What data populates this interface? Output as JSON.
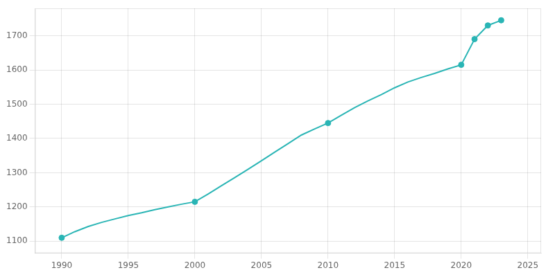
{
  "chart_data": {
    "type": "line",
    "x": [
      1990,
      1991,
      1992,
      1993,
      1994,
      1995,
      1996,
      1997,
      1998,
      1999,
      2000,
      2001,
      2002,
      2003,
      2004,
      2005,
      2006,
      2007,
      2008,
      2009,
      2010,
      2011,
      2012,
      2013,
      2014,
      2015,
      2016,
      2017,
      2018,
      2019,
      2020,
      2021,
      2022,
      2023
    ],
    "series": [
      {
        "color": "#2ab5b5",
        "line_style": "solid",
        "values": [
          1110,
          1128,
          1143,
          1155,
          1165,
          1175,
          1183,
          1192,
          1200,
          1208,
          1215,
          1238,
          1262,
          1286,
          1310,
          1335,
          1360,
          1385,
          1410,
          1428,
          1445,
          1468,
          1490,
          1510,
          1528,
          1548,
          1565,
          1578,
          1590,
          1603,
          1615,
          1690,
          1730,
          1745
        ]
      },
      {
        "type": "scatter",
        "marker": "circle",
        "color": "#2ab5b5",
        "values": [
          1110,
          null,
          null,
          null,
          null,
          null,
          null,
          null,
          null,
          null,
          1215,
          null,
          null,
          null,
          null,
          null,
          null,
          null,
          null,
          null,
          1445,
          null,
          null,
          null,
          null,
          null,
          null,
          null,
          null,
          null,
          1615,
          1690,
          1730,
          1745
        ]
      }
    ],
    "xlim": [
      1988,
      2026
    ],
    "xticks": [
      1990,
      1995,
      2000,
      2005,
      2010,
      2015,
      2020,
      2025
    ],
    "ylim": [
      1065,
      1780
    ],
    "yticks": [
      1100,
      1200,
      1300,
      1400,
      1500,
      1600,
      1700
    ],
    "grid": true
  }
}
